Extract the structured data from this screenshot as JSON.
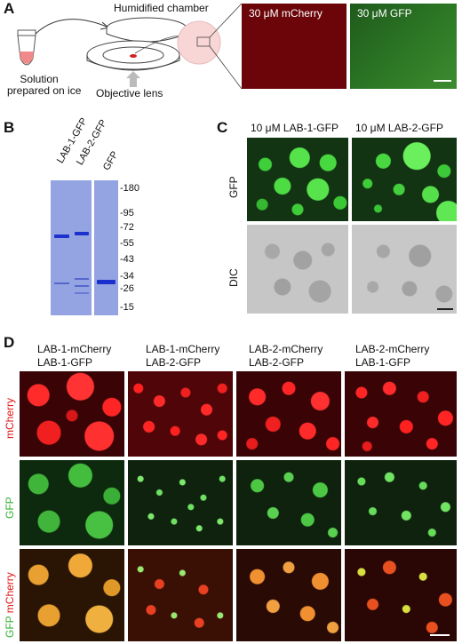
{
  "panels": {
    "A": "A",
    "B": "B",
    "C": "C",
    "D": "D"
  },
  "panelA": {
    "chamber_label": "Humidified chamber",
    "solution_label_1": "Solution",
    "solution_label_2": "prepared on ice",
    "objective_label": "Objective lens",
    "img1_caption": "30 μM mCherry",
    "img2_caption": "30 μM GFP"
  },
  "panelB": {
    "lanes": [
      "LAB-1-GFP",
      "LAB-2-GFP",
      "GFP"
    ],
    "markers": [
      "-180",
      "-95",
      "-72",
      "-55",
      "-43",
      "-34",
      "-26",
      "-15"
    ]
  },
  "panelC": {
    "col1": "10 μM LAB-1-GFP",
    "col2": "10 μM LAB-2-GFP",
    "row1": "GFP",
    "row2": "DIC"
  },
  "panelD": {
    "cols": [
      {
        "line1": "LAB-1-mCherry",
        "line2": "LAB-1-GFP"
      },
      {
        "line1": "LAB-1-mCherry",
        "line2": "LAB-2-GFP"
      },
      {
        "line1": "LAB-2-mCherry",
        "line2": "LAB-2-GFP"
      },
      {
        "line1": "LAB-2-mCherry",
        "line2": "LAB-1-GFP"
      }
    ],
    "row1": "mCherry",
    "row2": "GFP",
    "row3_a": "GFP",
    "row3_b": " mCherry"
  },
  "colors": {
    "red": "#e01010",
    "green": "#30c030",
    "gel": "#8fa0e0",
    "band": "#1a2fd0"
  }
}
